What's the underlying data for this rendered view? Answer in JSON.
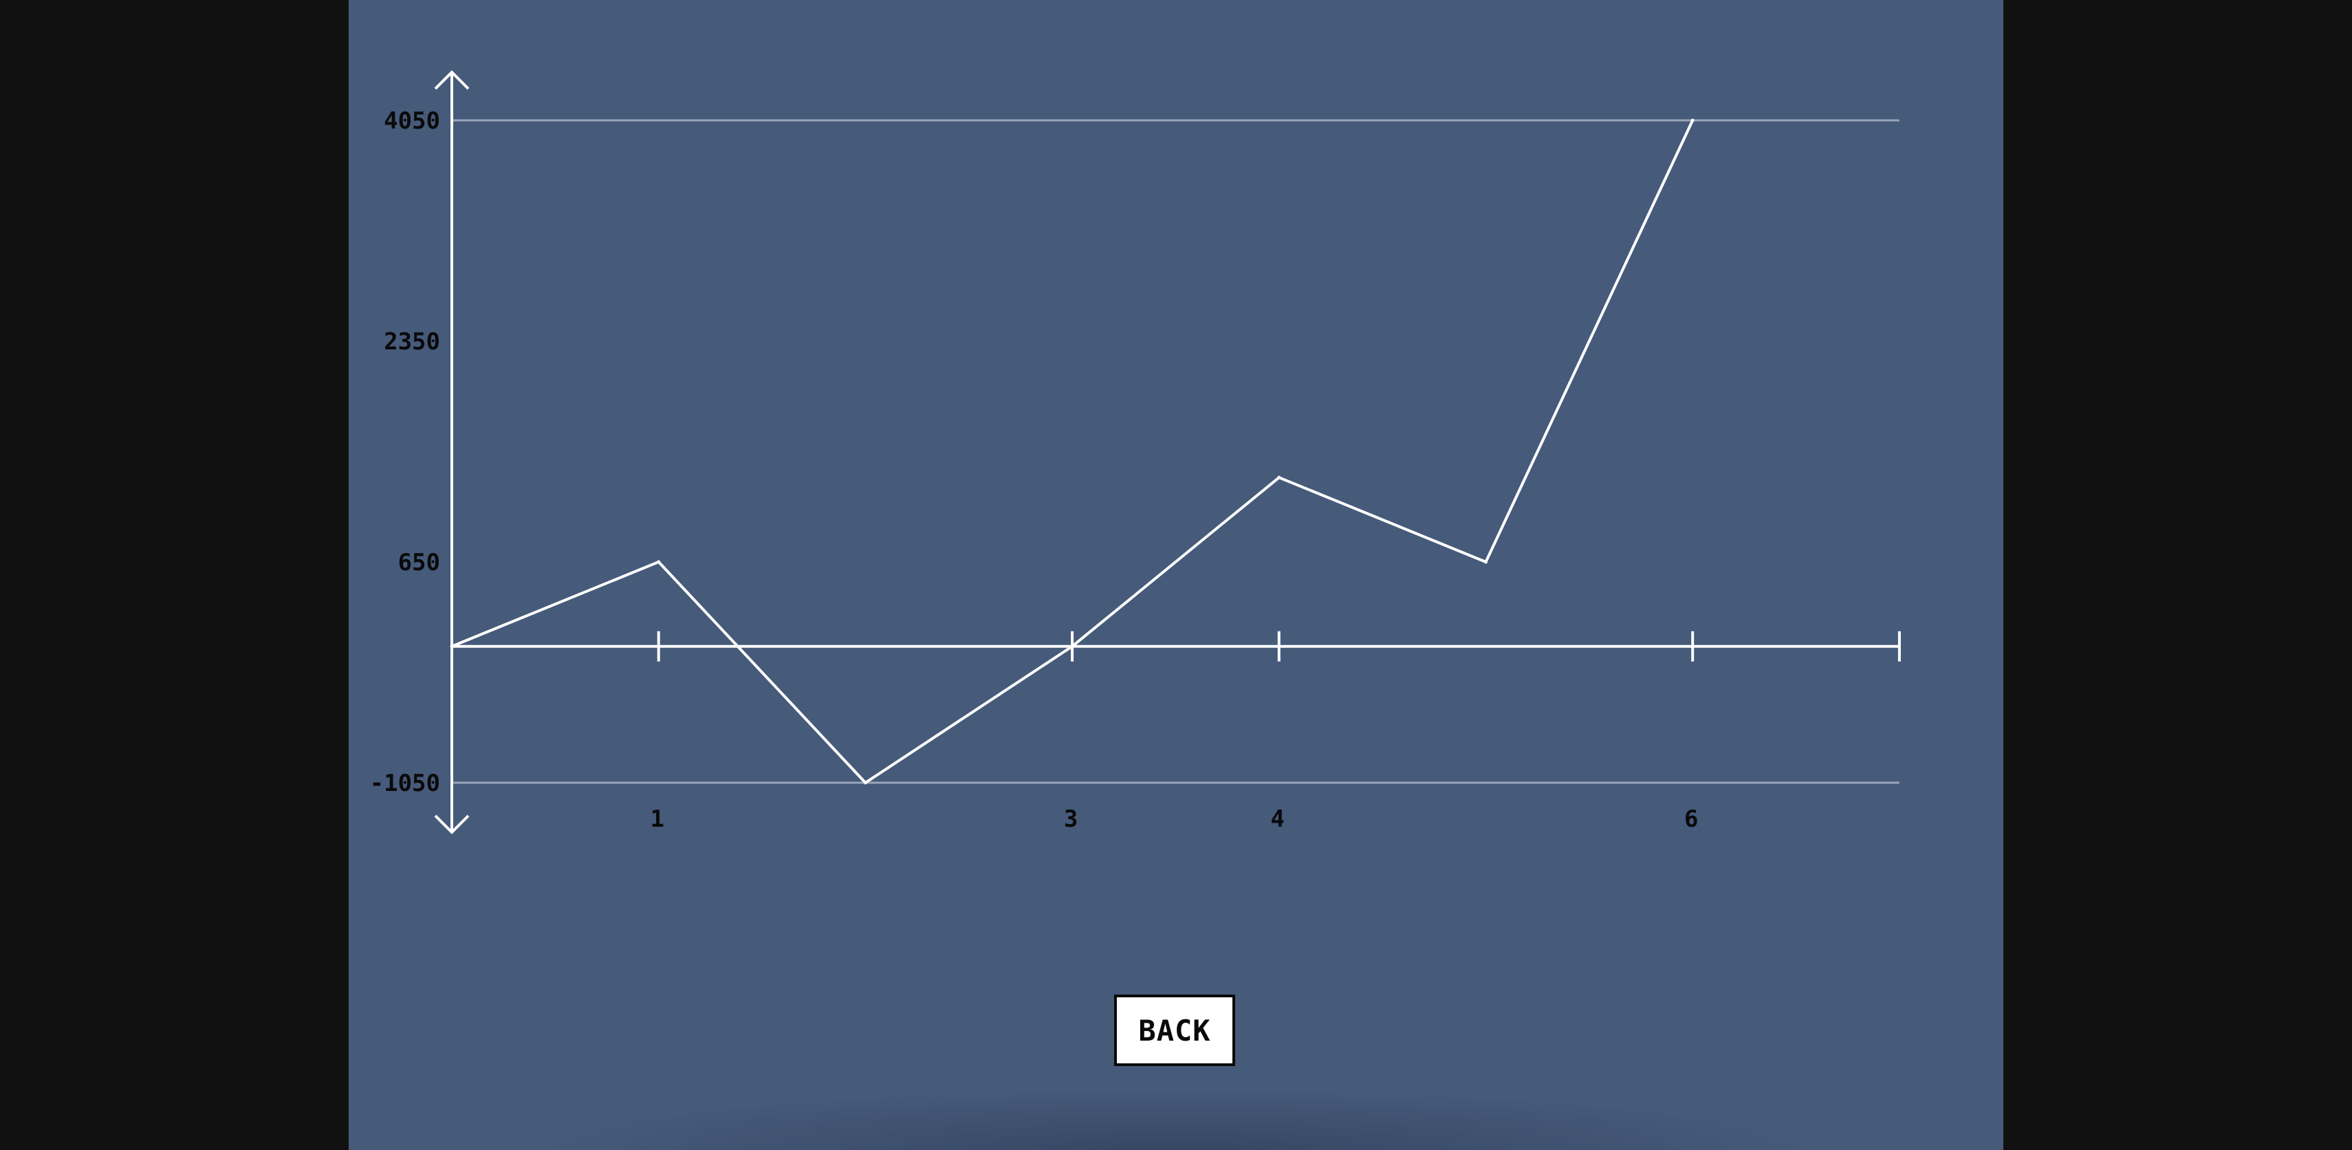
{
  "colors": {
    "background": "#111111",
    "panel": "#465a7a",
    "axis": "#ffffff",
    "gridline": "#9aa6bb",
    "series_line": "#ffffff",
    "tick_text": "#0a0a0a",
    "button_bg": "#ffffff",
    "button_border": "#0a0a0a"
  },
  "back_button": {
    "label": "BACK"
  },
  "chart_data": {
    "type": "line",
    "title": "",
    "xlabel": "",
    "ylabel": "",
    "x": [
      0,
      1,
      2,
      3,
      4,
      5,
      6
    ],
    "series": [
      {
        "values": [
          0,
          650,
          -1050,
          0,
          1300,
          650,
          4050
        ]
      }
    ],
    "x_ticks": [
      {
        "value": 1,
        "label": "1"
      },
      {
        "value": 3,
        "label": "3"
      },
      {
        "value": 4,
        "label": "4"
      },
      {
        "value": 6,
        "label": "6"
      }
    ],
    "x_tick_marks": [
      1,
      3,
      4,
      6,
      7
    ],
    "y_ticks": [
      {
        "value": 4050,
        "label": "4050"
      },
      {
        "value": 2350,
        "label": "2350"
      },
      {
        "value": 650,
        "label": "650"
      },
      {
        "value": -1050,
        "label": "-1050"
      }
    ],
    "gridlines_y": [
      4050,
      -1050
    ],
    "xlim": [
      0,
      7
    ],
    "ylim": [
      -1050,
      4050
    ],
    "legend": "none",
    "grid": false
  }
}
